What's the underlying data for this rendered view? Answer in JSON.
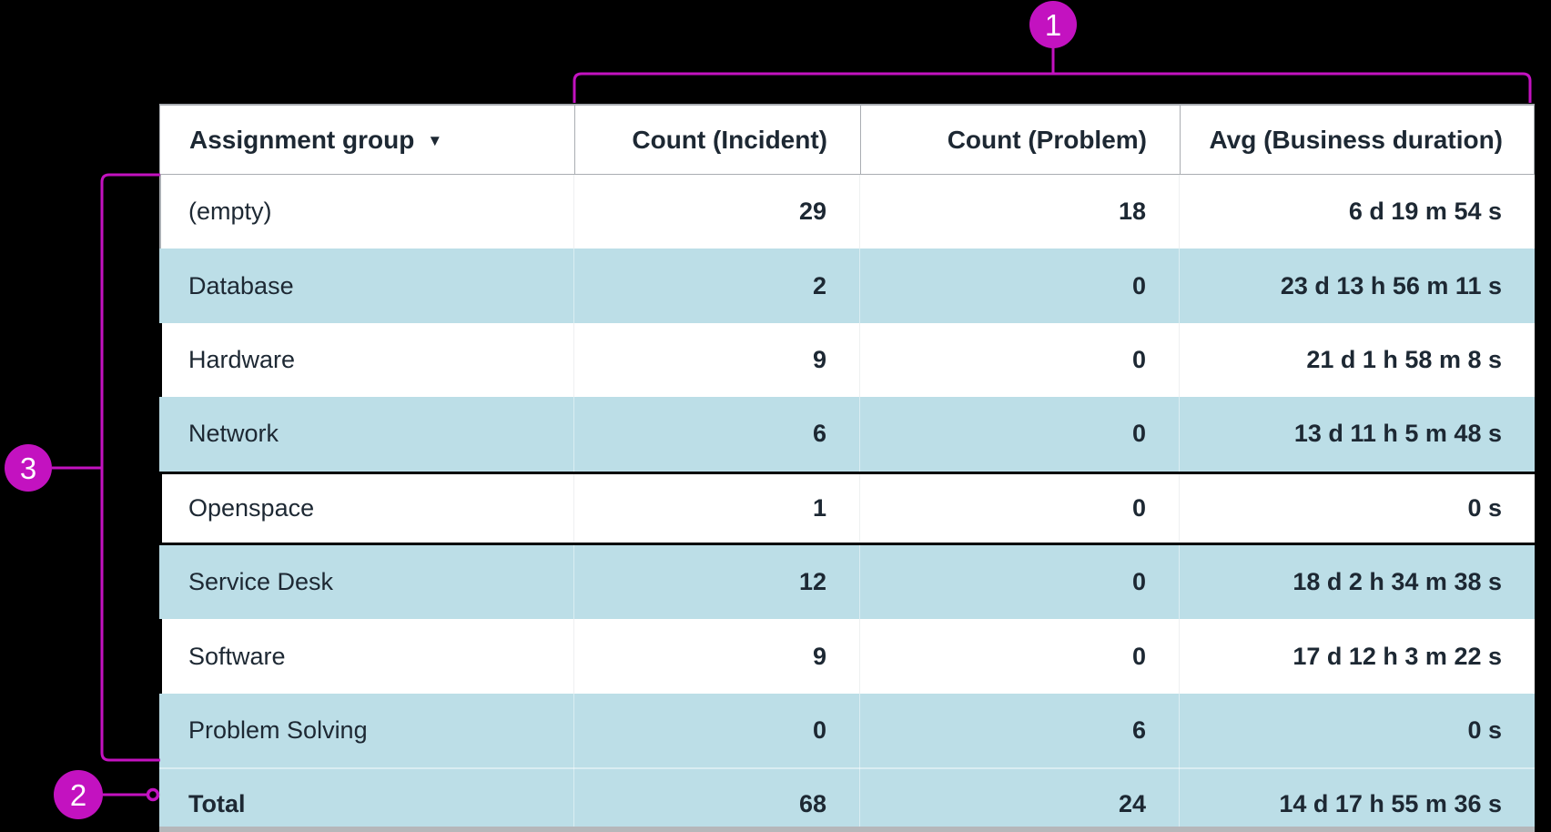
{
  "colors": {
    "magenta": "#c312c0",
    "row_blue": "#bcdee7",
    "text": "#1d2833",
    "header_border": "#a9adb2",
    "background": "#000000"
  },
  "annotations": {
    "callouts": [
      {
        "label": "1",
        "target": "measure-columns-bracket"
      },
      {
        "label": "2",
        "target": "total-row-pointer"
      },
      {
        "label": "3",
        "target": "group-rows-bracket"
      }
    ]
  },
  "table": {
    "header": {
      "group": "Assignment group",
      "sort_icon": "▼",
      "count_incident": "Count (Incident)",
      "count_problem": "Count (Problem)",
      "avg_duration": "Avg (Business duration)"
    },
    "rows": [
      {
        "group": "(empty)",
        "count_incident": "29",
        "count_problem": "18",
        "avg_duration": "6 d 19 m 54 s",
        "shade": "white",
        "edge": "gray-left"
      },
      {
        "group": "Database",
        "count_incident": "2",
        "count_problem": "0",
        "avg_duration": "23 d 13 h 56 m 11 s",
        "shade": "blue",
        "edge": ""
      },
      {
        "group": "Hardware",
        "count_incident": "9",
        "count_problem": "0",
        "avg_duration": "21 d 1 h 58 m 8 s",
        "shade": "white",
        "edge": "outline-left"
      },
      {
        "group": "Network",
        "count_incident": "6",
        "count_problem": "0",
        "avg_duration": "13 d 11 h 5 m 48 s",
        "shade": "blue",
        "edge": ""
      },
      {
        "group": "Openspace",
        "count_incident": "1",
        "count_problem": "0",
        "avg_duration": "0 s",
        "shade": "white",
        "edge": "outline-full"
      },
      {
        "group": "Service Desk",
        "count_incident": "12",
        "count_problem": "0",
        "avg_duration": "18 d 2 h 34 m 38 s",
        "shade": "blue",
        "edge": ""
      },
      {
        "group": "Software",
        "count_incident": "9",
        "count_problem": "0",
        "avg_duration": "17 d 12 h 3 m 22 s",
        "shade": "white",
        "edge": "outline-left"
      },
      {
        "group": "Problem Solving",
        "count_incident": "0",
        "count_problem": "6",
        "avg_duration": "0 s",
        "shade": "blue",
        "edge": ""
      },
      {
        "group": "Total",
        "count_incident": "68",
        "count_problem": "24",
        "avg_duration": "14 d 17 h 55 m 36 s",
        "shade": "blue",
        "edge": "",
        "is_total": true
      }
    ]
  }
}
